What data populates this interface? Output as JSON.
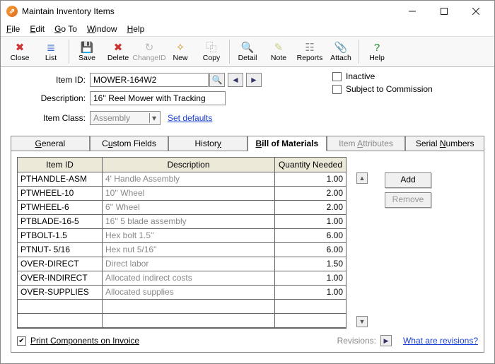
{
  "window": {
    "title": "Maintain Inventory Items"
  },
  "menubar": [
    "File",
    "Edit",
    "Go To",
    "Window",
    "Help"
  ],
  "toolbar": [
    {
      "label": "Close",
      "icon": "✖",
      "color": "#c33",
      "disabled": false
    },
    {
      "label": "List",
      "icon": "≣",
      "color": "#36c",
      "disabled": false
    },
    {
      "label": "Save",
      "icon": "💾",
      "color": "#555",
      "disabled": false
    },
    {
      "label": "Delete",
      "icon": "✖",
      "color": "#c33",
      "disabled": false
    },
    {
      "label": "ChangeID",
      "icon": "↻",
      "color": "#999",
      "disabled": true
    },
    {
      "label": "New",
      "icon": "✧",
      "color": "#c93",
      "disabled": false
    },
    {
      "label": "Copy",
      "icon": "⿻",
      "color": "#888",
      "disabled": false
    },
    {
      "label": "Detail",
      "icon": "🔍",
      "color": "#555",
      "disabled": false
    },
    {
      "label": "Note",
      "icon": "✎",
      "color": "#cc8",
      "disabled": false
    },
    {
      "label": "Reports",
      "icon": "☷",
      "color": "#888",
      "disabled": false
    },
    {
      "label": "Attach",
      "icon": "📎",
      "color": "#888",
      "disabled": false
    },
    {
      "label": "Help",
      "icon": "?",
      "color": "#2a8a2a",
      "disabled": false
    }
  ],
  "form": {
    "itemid_label": "Item ID:",
    "itemid_value": "MOWER-164W2",
    "desc_label": "Description:",
    "desc_value": "16'' Reel Mower with Tracking",
    "class_label": "Item Class:",
    "class_value": "Assembly",
    "set_defaults": "Set defaults",
    "inactive_label": "Inactive",
    "commission_label": "Subject to Commission"
  },
  "tabs": {
    "general": "General",
    "custom": "Custom Fields",
    "history": "History",
    "bom": "Bill of Materials",
    "attrs": "Item Attributes",
    "serial": "Serial Numbers"
  },
  "grid": {
    "headers": {
      "id": "Item ID",
      "desc": "Description",
      "qty": "Quantity Needed"
    },
    "rows": [
      {
        "id": "PTHANDLE-ASM",
        "desc": "4' Handle Assembly",
        "qty": "1.00"
      },
      {
        "id": "PTWHEEL-10",
        "desc": "10'' Wheel",
        "qty": "2.00"
      },
      {
        "id": "PTWHEEL-6",
        "desc": "6'' Wheel",
        "qty": "2.00"
      },
      {
        "id": "PTBLADE-16-5",
        "desc": "16'' 5 blade assembly",
        "qty": "1.00"
      },
      {
        "id": "PTBOLT-1.5",
        "desc": "Hex bolt 1.5''",
        "qty": "6.00"
      },
      {
        "id": "PTNUT- 5/16",
        "desc": "Hex nut 5/16''",
        "qty": "6.00"
      },
      {
        "id": "OVER-DIRECT",
        "desc": "Direct labor",
        "qty": "1.50"
      },
      {
        "id": "OVER-INDIRECT",
        "desc": "Allocated indirect costs",
        "qty": "1.00"
      },
      {
        "id": "OVER-SUPPLIES",
        "desc": "Allocated supplies",
        "qty": "1.00"
      },
      {
        "id": "",
        "desc": "",
        "qty": ""
      },
      {
        "id": "",
        "desc": "",
        "qty": ""
      }
    ]
  },
  "buttons": {
    "add": "Add",
    "remove": "Remove"
  },
  "bottom": {
    "print_chk": "Print Components on Invoice",
    "revisions_label": "Revisions:",
    "what_link": "What are revisions?"
  }
}
